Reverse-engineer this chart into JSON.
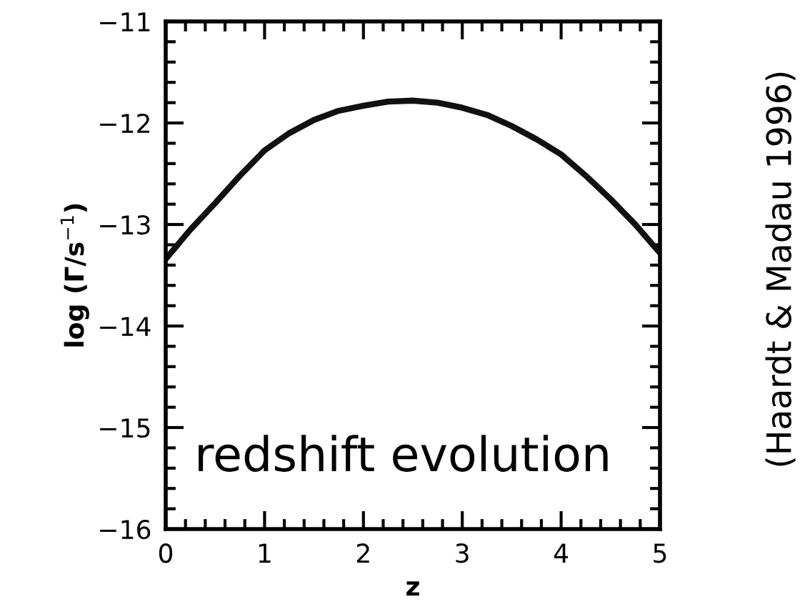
{
  "chart_data": {
    "type": "line",
    "xlabel": "z",
    "ylabel": "log (Γ/s$^{−1}$)",
    "x": [
      0,
      0.25,
      0.5,
      0.75,
      1,
      1.25,
      1.5,
      1.75,
      2,
      2.25,
      2.5,
      2.75,
      3,
      3.25,
      3.5,
      3.75,
      4,
      4.25,
      4.5,
      4.75,
      5
    ],
    "series": [
      {
        "color": "#111111",
        "values": [
          -13.34,
          -13.05,
          -12.79,
          -12.52,
          -12.27,
          -12.1,
          -11.97,
          -11.88,
          -11.83,
          -11.79,
          -11.78,
          -11.8,
          -11.85,
          -11.92,
          -12.03,
          -12.16,
          -12.31,
          -12.52,
          -12.75,
          -13.0,
          -13.28
        ]
      }
    ],
    "xlim": [
      0,
      5
    ],
    "ylim": [
      -16,
      -11
    ],
    "xticks": [
      0,
      1,
      2,
      3,
      4,
      5
    ],
    "yticks": [
      -16,
      -15,
      -14,
      -13,
      -12,
      -11
    ],
    "grid": false,
    "legend": false,
    "marker": "none",
    "line_style": "solid",
    "annotations": [
      "redshift evolution",
      "(Haardt & Madau 1996)"
    ]
  }
}
